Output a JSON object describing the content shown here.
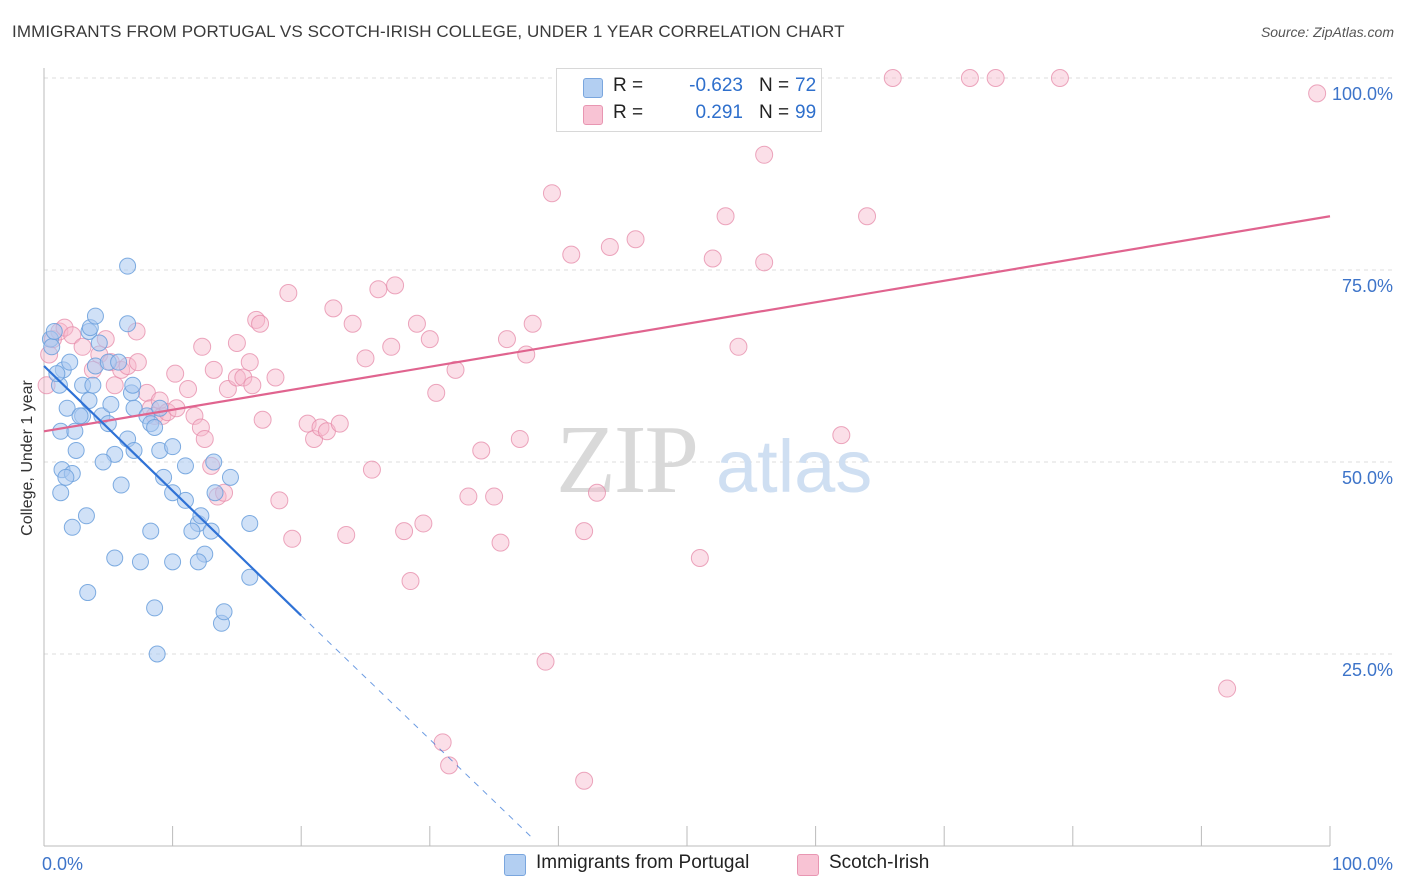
{
  "title": "IMMIGRANTS FROM PORTUGAL VS SCOTCH-IRISH COLLEGE, UNDER 1 YEAR CORRELATION CHART",
  "source": "Source: ZipAtlas.com",
  "watermark": {
    "zip": "ZIP",
    "atlas": "atlas"
  },
  "colors": {
    "blue_fill": "#a9c8f0",
    "blue_stroke": "#6a9fdc",
    "blue_line": "#2f72d6",
    "pink_fill": "#f6b9cc",
    "pink_stroke": "#e58aa8",
    "pink_line": "#e0648f",
    "tick_label": "#3d74c9",
    "grid": "#dddddd"
  },
  "legend": {
    "rows": [
      {
        "r_label": "R =",
        "r_value": "-0.623",
        "n_label": "N =",
        "n_value": "72"
      },
      {
        "r_label": "R =",
        "r_value": "0.291",
        "n_label": "N =",
        "n_value": "99"
      }
    ]
  },
  "chart_data": {
    "type": "scatter",
    "title": "IMMIGRANTS FROM PORTUGAL VS SCOTCH-IRISH COLLEGE, UNDER 1 YEAR CORRELATION CHART",
    "xlabel": "",
    "ylabel": "College, Under 1 year",
    "xlim": [
      0,
      100
    ],
    "ylim": [
      0,
      100
    ],
    "x_tick_labels": [
      "0.0%",
      "100.0%"
    ],
    "y_tick_labels": [
      "25.0%",
      "50.0%",
      "75.0%",
      "100.0%"
    ],
    "y_ticks": [
      25,
      50,
      75,
      100
    ],
    "grid": true,
    "legend_position": "top-center",
    "series": [
      {
        "name": "Immigrants from Portugal",
        "r": -0.623,
        "n": 72,
        "trend": {
          "x_start": 0,
          "y_start": 62.5,
          "x_end": 20,
          "y_end": 30,
          "dashed_to_x": 38,
          "dashed_to_y": 1
        },
        "points": [
          [
            0.5,
            66
          ],
          [
            0.6,
            65
          ],
          [
            0.8,
            67
          ],
          [
            1.5,
            62
          ],
          [
            1.2,
            60
          ],
          [
            2,
            63
          ],
          [
            1.8,
            57
          ],
          [
            1.3,
            54
          ],
          [
            1.4,
            49
          ],
          [
            2.2,
            48.5
          ],
          [
            1.3,
            46
          ],
          [
            2.4,
            54
          ],
          [
            3,
            60
          ],
          [
            3,
            56
          ],
          [
            3.5,
            58
          ],
          [
            3.8,
            60
          ],
          [
            4,
            62.5
          ],
          [
            4.5,
            56
          ],
          [
            5,
            55
          ],
          [
            5.5,
            51
          ],
          [
            3.5,
            67
          ],
          [
            3.6,
            67.5
          ],
          [
            4,
            69
          ],
          [
            4.3,
            65.5
          ],
          [
            5,
            63
          ],
          [
            5.8,
            63
          ],
          [
            6.8,
            59
          ],
          [
            7,
            57
          ],
          [
            6.5,
            53
          ],
          [
            7,
            51.5
          ],
          [
            6.5,
            75.5
          ],
          [
            6.5,
            68
          ],
          [
            6.9,
            60
          ],
          [
            8,
            56
          ],
          [
            8.3,
            55
          ],
          [
            8.6,
            54.5
          ],
          [
            9,
            57
          ],
          [
            9,
            51.5
          ],
          [
            10,
            46
          ],
          [
            11,
            49.5
          ],
          [
            11,
            45
          ],
          [
            12,
            42
          ],
          [
            12.2,
            43
          ],
          [
            13,
            41
          ],
          [
            13.3,
            46
          ],
          [
            13.2,
            50
          ],
          [
            12.5,
            38
          ],
          [
            12,
            37
          ],
          [
            10,
            37
          ],
          [
            7.5,
            37
          ],
          [
            5.5,
            37.5
          ],
          [
            2.2,
            41.5
          ],
          [
            3.3,
            43
          ],
          [
            3.4,
            33
          ],
          [
            8.3,
            41
          ],
          [
            8.6,
            31
          ],
          [
            8.8,
            25
          ],
          [
            13.8,
            29
          ],
          [
            14,
            30.5
          ],
          [
            16,
            42
          ],
          [
            16,
            35
          ],
          [
            1,
            61.5
          ],
          [
            2.5,
            51.5
          ],
          [
            4.6,
            50
          ],
          [
            1.7,
            48
          ],
          [
            10,
            52
          ],
          [
            9.3,
            48
          ],
          [
            11.5,
            41
          ],
          [
            6,
            47
          ],
          [
            2.8,
            56
          ],
          [
            5.2,
            57.5
          ],
          [
            14.5,
            48
          ]
        ]
      },
      {
        "name": "Scotch-Irish",
        "r": 0.291,
        "n": 99,
        "trend": {
          "x_start": 0,
          "y_start": 54,
          "x_end": 100,
          "y_end": 82
        },
        "points": [
          [
            0.2,
            60
          ],
          [
            0.4,
            64
          ],
          [
            0.7,
            66
          ],
          [
            1.2,
            67
          ],
          [
            1.6,
            67.5
          ],
          [
            2.2,
            66.5
          ],
          [
            3,
            65
          ],
          [
            3.8,
            62
          ],
          [
            4.3,
            64
          ],
          [
            4.8,
            66
          ],
          [
            5.2,
            63
          ],
          [
            5.5,
            60
          ],
          [
            6,
            62
          ],
          [
            6.5,
            62.5
          ],
          [
            7.2,
            67
          ],
          [
            7.3,
            63
          ],
          [
            8,
            59
          ],
          [
            8.3,
            57
          ],
          [
            8.6,
            56
          ],
          [
            9.2,
            56
          ],
          [
            9,
            58
          ],
          [
            9.6,
            56.5
          ],
          [
            10.2,
            61.5
          ],
          [
            10.3,
            57
          ],
          [
            11.2,
            59.5
          ],
          [
            11.7,
            56
          ],
          [
            12.2,
            54.5
          ],
          [
            12.3,
            65
          ],
          [
            12.5,
            53
          ],
          [
            13,
            49.5
          ],
          [
            13.2,
            62
          ],
          [
            13.5,
            45.5
          ],
          [
            14,
            46
          ],
          [
            14.3,
            59.5
          ],
          [
            15,
            65.5
          ],
          [
            15,
            61
          ],
          [
            15.5,
            61
          ],
          [
            16,
            63
          ],
          [
            16.2,
            60
          ],
          [
            16.5,
            68.5
          ],
          [
            16.8,
            68
          ],
          [
            17,
            55.5
          ],
          [
            18,
            61
          ],
          [
            18.3,
            45
          ],
          [
            19,
            72
          ],
          [
            19.3,
            40
          ],
          [
            20.5,
            55
          ],
          [
            21,
            53
          ],
          [
            21.5,
            54.5
          ],
          [
            22,
            54
          ],
          [
            22.5,
            70
          ],
          [
            23,
            55
          ],
          [
            23.5,
            40.5
          ],
          [
            24,
            68
          ],
          [
            25,
            63.5
          ],
          [
            25.5,
            49
          ],
          [
            26,
            72.5
          ],
          [
            27,
            65
          ],
          [
            27.3,
            73
          ],
          [
            28,
            41
          ],
          [
            28.5,
            34.5
          ],
          [
            29,
            68
          ],
          [
            29.5,
            42
          ],
          [
            30,
            66
          ],
          [
            30.5,
            59
          ],
          [
            31,
            13.5
          ],
          [
            31.5,
            10.5
          ],
          [
            32,
            62
          ],
          [
            33,
            45.5
          ],
          [
            34,
            51.5
          ],
          [
            35,
            45.5
          ],
          [
            35.5,
            39.5
          ],
          [
            36,
            66
          ],
          [
            37,
            53
          ],
          [
            37.5,
            64
          ],
          [
            38,
            68
          ],
          [
            39,
            24
          ],
          [
            39.5,
            85
          ],
          [
            41,
            77
          ],
          [
            42,
            8.5
          ],
          [
            42,
            41
          ],
          [
            43,
            46
          ],
          [
            44,
            78
          ],
          [
            46,
            79
          ],
          [
            47,
            100
          ],
          [
            51,
            37.5
          ],
          [
            52,
            76.5
          ],
          [
            53,
            82
          ],
          [
            54,
            65
          ],
          [
            56,
            90
          ],
          [
            56,
            76
          ],
          [
            62,
            53.5
          ],
          [
            64,
            82
          ],
          [
            66,
            100
          ],
          [
            72,
            100
          ],
          [
            74,
            100
          ],
          [
            79,
            100
          ],
          [
            92,
            20.5
          ],
          [
            99,
            98
          ]
        ]
      }
    ]
  },
  "bottom_legend": {
    "blue_label": "Immigrants from Portugal",
    "pink_label": "Scotch-Irish"
  }
}
